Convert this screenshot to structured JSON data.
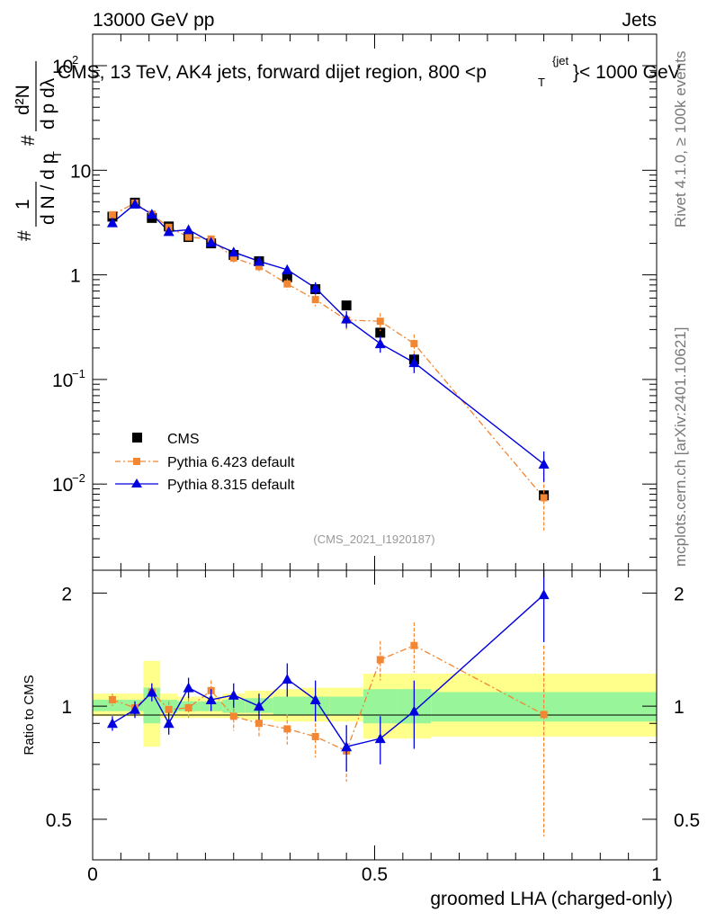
{
  "header": {
    "energy_label": "13000 GeV pp",
    "category_label": "Jets",
    "title_text": "CMS, 13 TeV, AK4 jets, forward dijet region, 800 <p",
    "title_sup": "{jet",
    "title_sub": "T",
    "title_end": "}< 1000 GeV",
    "analysis_id": "(CMS_2021_I1920187)",
    "rivet_label": "Rivet 4.1.0, ≥ 100k events",
    "mcplots_label": "mcplots.cern.ch [arXiv:2401.10621]"
  },
  "chart_data": [
    {
      "type": "scatter",
      "panel": "main",
      "ylabel": "1/dN/dp_T # d^2N/dp_T dλ #",
      "yscale": "log",
      "ylim": [
        0.0015,
        200
      ],
      "xlim": [
        0,
        1
      ],
      "yticks": [
        {
          "value": 0.01,
          "base": "10",
          "exp": "−2"
        },
        {
          "value": 0.1,
          "base": "10",
          "exp": "−1"
        },
        {
          "value": 1,
          "base": "1",
          "exp": ""
        },
        {
          "value": 10,
          "base": "10",
          "exp": ""
        },
        {
          "value": 100,
          "base": "10",
          "exp": "2"
        }
      ],
      "series": [
        {
          "name": "CMS",
          "color": "#000000",
          "marker": "square",
          "x": [
            0.035,
            0.075,
            0.105,
            0.135,
            0.17,
            0.21,
            0.25,
            0.295,
            0.345,
            0.395,
            0.45,
            0.51,
            0.57,
            0.8
          ],
          "values": [
            3.6,
            4.9,
            3.5,
            2.9,
            2.3,
            2.0,
            1.55,
            1.35,
            0.95,
            0.73,
            0.51,
            0.28,
            0.155,
            0.0078
          ]
        },
        {
          "name": "Pythia 6.423 default",
          "color": "#f28632",
          "marker": "small-square",
          "line": "dash-dot",
          "x": [
            0.035,
            0.075,
            0.105,
            0.135,
            0.17,
            0.21,
            0.25,
            0.295,
            0.345,
            0.395,
            0.45,
            0.51,
            0.57,
            0.8
          ],
          "values": [
            3.75,
            4.85,
            3.8,
            2.85,
            2.3,
            2.2,
            1.45,
            1.2,
            0.82,
            0.58,
            0.37,
            0.36,
            0.22,
            0.0074
          ],
          "err": [
            0.15,
            0.2,
            0.2,
            0.15,
            0.15,
            0.15,
            0.15,
            0.12,
            0.1,
            0.08,
            0.07,
            0.07,
            0.05,
            0.0038
          ]
        },
        {
          "name": "Pythia 8.315 default",
          "color": "#0000e0",
          "marker": "triangle",
          "line": "solid",
          "x": [
            0.035,
            0.075,
            0.105,
            0.135,
            0.17,
            0.21,
            0.25,
            0.295,
            0.345,
            0.395,
            0.45,
            0.51,
            0.57,
            0.8
          ],
          "values": [
            3.15,
            4.75,
            3.8,
            2.6,
            2.7,
            2.05,
            1.65,
            1.35,
            1.12,
            0.75,
            0.38,
            0.22,
            0.145,
            0.0155
          ],
          "err": [
            0.15,
            0.2,
            0.2,
            0.15,
            0.15,
            0.12,
            0.12,
            0.1,
            0.12,
            0.1,
            0.07,
            0.04,
            0.03,
            0.005
          ]
        }
      ]
    },
    {
      "type": "scatter",
      "panel": "ratio",
      "ylabel": "Ratio to CMS",
      "xlabel": "groomed LHA (charged-only)",
      "ylim": [
        0.39,
        2.3
      ],
      "xlim": [
        0,
        1
      ],
      "xticks": [
        "0",
        "0.5",
        "1"
      ],
      "yticks": [
        "0.5",
        "1",
        "2"
      ],
      "bins": [
        0,
        0.06,
        0.09,
        0.12,
        0.15,
        0.19,
        0.23,
        0.27,
        0.32,
        0.37,
        0.42,
        0.48,
        0.54,
        0.6,
        1.0
      ],
      "band_inner": [
        [
          0.97,
          1.04
        ],
        [
          0.97,
          1.04
        ],
        [
          0.9,
          1.12
        ],
        [
          0.96,
          1.04
        ],
        [
          0.97,
          1.03
        ],
        [
          0.97,
          1.03
        ],
        [
          0.96,
          1.04
        ],
        [
          0.96,
          1.05
        ],
        [
          0.95,
          1.06
        ],
        [
          0.95,
          1.06
        ],
        [
          0.95,
          1.06
        ],
        [
          0.9,
          1.11
        ],
        [
          0.9,
          1.11
        ],
        [
          0.91,
          1.09
        ]
      ],
      "band_outer": [
        [
          0.94,
          1.08
        ],
        [
          0.94,
          1.08
        ],
        [
          0.78,
          1.32
        ],
        [
          0.93,
          1.08
        ],
        [
          0.93,
          1.06
        ],
        [
          0.93,
          1.06
        ],
        [
          0.93,
          1.08
        ],
        [
          0.92,
          1.1
        ],
        [
          0.91,
          1.11
        ],
        [
          0.91,
          1.12
        ],
        [
          0.91,
          1.12
        ],
        [
          0.82,
          1.22
        ],
        [
          0.82,
          1.22
        ],
        [
          0.83,
          1.22
        ]
      ],
      "series": [
        {
          "name": "Pythia 6.423 default",
          "color": "#f28632",
          "x": [
            0.035,
            0.075,
            0.105,
            0.135,
            0.17,
            0.21,
            0.25,
            0.295,
            0.345,
            0.395,
            0.45,
            0.51,
            0.57,
            0.8
          ],
          "values": [
            1.04,
            0.99,
            1.09,
            0.98,
            0.99,
            1.1,
            0.94,
            0.9,
            0.87,
            0.83,
            0.76,
            1.33,
            1.45,
            0.95
          ],
          "err": [
            0.04,
            0.04,
            0.06,
            0.05,
            0.06,
            0.07,
            0.08,
            0.07,
            0.08,
            0.1,
            0.13,
            0.16,
            0.22,
            0.5
          ]
        },
        {
          "name": "Pythia 8.315 default",
          "color": "#0000e0",
          "x": [
            0.035,
            0.075,
            0.105,
            0.135,
            0.17,
            0.21,
            0.25,
            0.295,
            0.345,
            0.395,
            0.45,
            0.51,
            0.57,
            0.8
          ],
          "values": [
            0.9,
            0.98,
            1.09,
            0.9,
            1.12,
            1.04,
            1.07,
            1.0,
            1.18,
            1.04,
            0.78,
            0.82,
            0.97,
            1.98
          ],
          "err": [
            0.04,
            0.05,
            0.06,
            0.06,
            0.07,
            0.07,
            0.08,
            0.08,
            0.12,
            0.13,
            0.11,
            0.12,
            0.2,
            0.5
          ]
        }
      ]
    }
  ]
}
